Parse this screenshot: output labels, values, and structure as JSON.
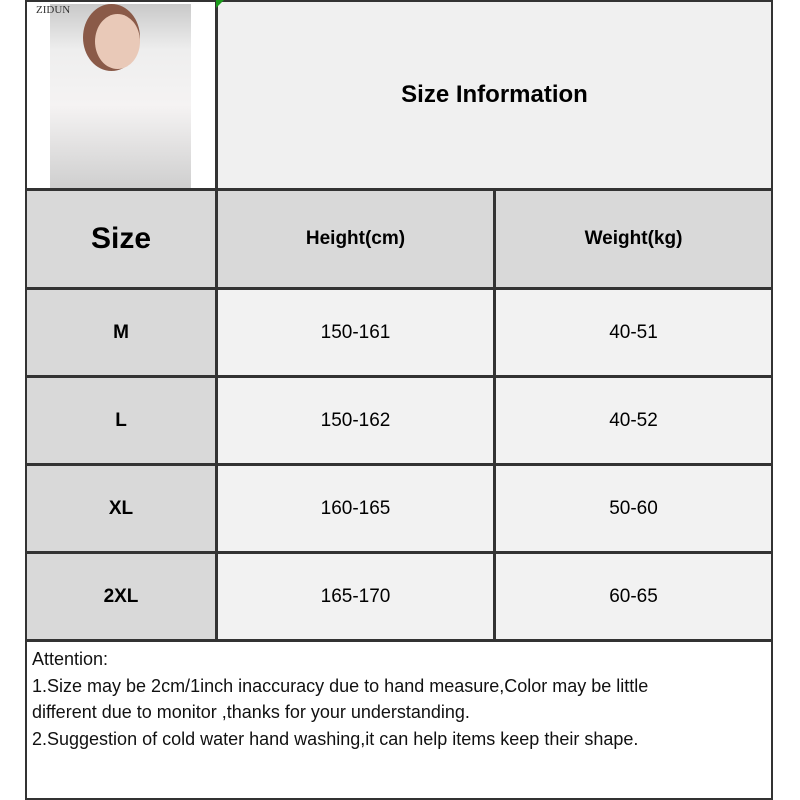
{
  "watermark": "ZIDUN",
  "title": "Size Information",
  "headers": [
    "Size",
    "Height(cm)",
    "Weight(kg)"
  ],
  "rows": [
    [
      "M",
      "150-161",
      "40-51"
    ],
    [
      "L",
      "150-162",
      "40-52"
    ],
    [
      "XL",
      "160-165",
      "50-60"
    ],
    [
      "2XL",
      "165-170",
      "60-65"
    ]
  ],
  "attention": {
    "heading": "Attention:",
    "lines": [
      "1.Size may be 2cm/1inch inaccuracy due to hand measure,Color may be little",
      "different due to monitor ,thanks for your understanding.",
      "2.Suggestion of cold water hand washing,it can help items keep their shape."
    ]
  }
}
